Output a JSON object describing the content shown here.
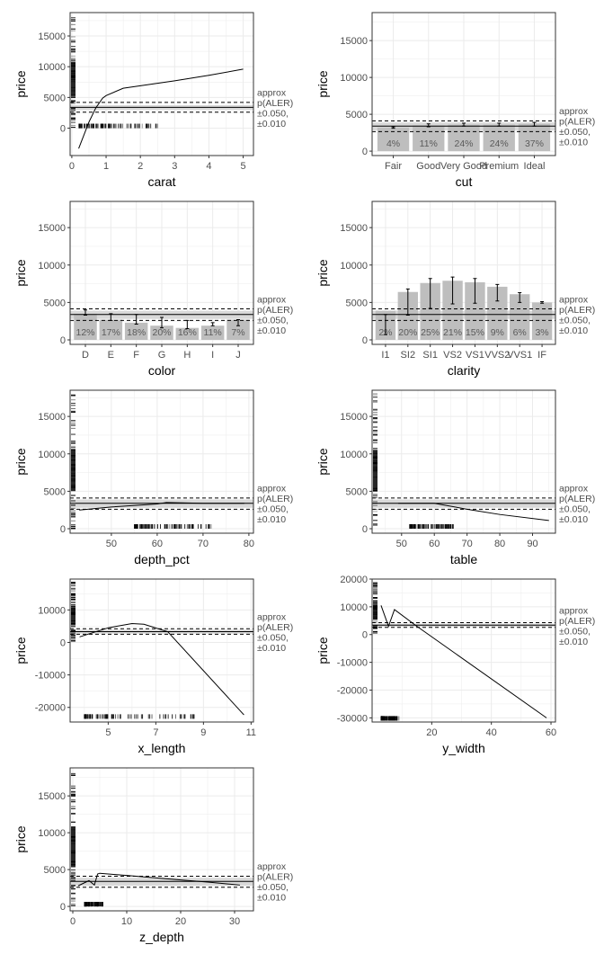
{
  "aler_label": [
    "approx",
    "p(ALER)",
    "±0.050,",
    "±0.010"
  ],
  "colors": {
    "bar": "#bebebe",
    "band": "#d9d9d9",
    "grid": "#ebebeb",
    "line": "#000000"
  },
  "chart_data": [
    {
      "type": "line",
      "xlabel": "carat",
      "ylabel": "price",
      "xlim": [
        -0.05,
        5.3
      ],
      "ylim": [
        -4450,
        18800
      ],
      "xticks": [
        0,
        1,
        2,
        3,
        4,
        5
      ],
      "yticks": [
        0,
        5000,
        10000,
        15000
      ],
      "x": [
        0.2,
        0.5,
        0.7,
        0.9,
        1.0,
        1.5,
        2,
        3,
        4,
        5
      ],
      "y": [
        -3300,
        1000,
        3300,
        4900,
        5300,
        6500,
        6900,
        7700,
        8600,
        9600
      ],
      "aler": {
        "median": 3400,
        "inner": [
          2950,
          3750
        ],
        "outer": [
          2600,
          4200
        ]
      },
      "rug_x": [
        0.2,
        2.6
      ],
      "rug_y_at": 0
    },
    {
      "type": "bar",
      "xlabel": "cut",
      "ylabel": "price",
      "ylim": [
        -600,
        18800
      ],
      "yticks": [
        0,
        5000,
        10000,
        15000
      ],
      "categories": [
        "Fair",
        "Good",
        "Very Good",
        "Premium",
        "Ideal"
      ],
      "values": [
        3200,
        3500,
        3600,
        3600,
        3700
      ],
      "err_low": [
        3100,
        3300,
        3400,
        3400,
        3400
      ],
      "err_high": [
        3300,
        3700,
        3800,
        3800,
        3900
      ],
      "percent_labels": [
        "4%",
        "11%",
        "24%",
        "24%",
        "37%"
      ],
      "aler": {
        "median": 3400,
        "inner": [
          2800,
          3900
        ],
        "outer": [
          2650,
          4100
        ]
      }
    },
    {
      "type": "bar",
      "xlabel": "color",
      "ylabel": "price",
      "ylim": [
        -600,
        18500
      ],
      "yticks": [
        0,
        5000,
        10000,
        15000
      ],
      "categories": [
        "D",
        "E",
        "F",
        "G",
        "H",
        "I",
        "J"
      ],
      "values": [
        3500,
        2700,
        2300,
        1900,
        1600,
        1900,
        2700
      ],
      "err_low": [
        3300,
        2600,
        2100,
        1600,
        1500,
        1900,
        1900
      ],
      "err_high": [
        4000,
        3500,
        3400,
        3000,
        2600,
        2300,
        2700
      ],
      "percent_labels": [
        "12%",
        "17%",
        "18%",
        "20%",
        "16%",
        "11%",
        "7%"
      ],
      "aler": {
        "median": 3400,
        "inner": [
          2800,
          3900
        ],
        "outer": [
          2600,
          4150
        ]
      }
    },
    {
      "type": "bar",
      "xlabel": "clarity",
      "ylabel": "price",
      "ylim": [
        -600,
        18500
      ],
      "yticks": [
        0,
        5000,
        10000,
        15000
      ],
      "categories": [
        "I1",
        "SI2",
        "SI1",
        "VS2",
        "VS1",
        "VVS2",
        "VVS1",
        "IF"
      ],
      "values": [
        3900,
        6400,
        7600,
        7900,
        7700,
        7100,
        6100,
        5000
      ],
      "err_low": [
        700,
        3300,
        4200,
        4800,
        4900,
        5200,
        5000,
        4900
      ],
      "err_high": [
        3400,
        6800,
        8200,
        8400,
        8200,
        7400,
        6300,
        5100
      ],
      "percent_labels": [
        "2%",
        "20%",
        "25%",
        "21%",
        "15%",
        "9%",
        "6%",
        "3%"
      ],
      "aler": {
        "median": 3400,
        "inner": [
          2800,
          3900
        ],
        "outer": [
          2600,
          4150
        ]
      }
    },
    {
      "type": "line",
      "xlabel": "depth_pct",
      "ylabel": "price",
      "xlim": [
        41,
        81
      ],
      "ylim": [
        -600,
        18500
      ],
      "xticks": [
        50,
        60,
        70,
        80
      ],
      "yticks": [
        0,
        5000,
        10000,
        15000
      ],
      "x": [
        43,
        50,
        60,
        62,
        70,
        79
      ],
      "y": [
        2500,
        2900,
        3300,
        3500,
        3400,
        3400
      ],
      "aler": {
        "median": 3400,
        "inner": [
          2800,
          3900
        ],
        "outer": [
          2600,
          4100
        ]
      },
      "rug_x": [
        55,
        72
      ],
      "rug_y_at": 0
    },
    {
      "type": "line",
      "xlabel": "table",
      "ylabel": "price",
      "xlim": [
        41,
        97
      ],
      "ylim": [
        -600,
        18500
      ],
      "xticks": [
        50,
        60,
        70,
        80,
        90
      ],
      "yticks": [
        0,
        5000,
        10000,
        15000
      ],
      "x": [
        49,
        60,
        70,
        80,
        95
      ],
      "y": [
        3400,
        3400,
        2600,
        1900,
        1100
      ],
      "aler": {
        "median": 3400,
        "inner": [
          2800,
          3900
        ],
        "outer": [
          2600,
          4100
        ]
      },
      "rug_x": [
        52.5,
        66
      ],
      "rug_y_at": 0
    },
    {
      "type": "line",
      "xlabel": "x_length",
      "ylabel": "price",
      "xlim": [
        3.4,
        11.1
      ],
      "ylim": [
        -24500,
        19500
      ],
      "xticks": [
        5,
        7,
        9,
        11
      ],
      "yticks": [
        -20000,
        -10000,
        0,
        10000
      ],
      "x": [
        3.8,
        5,
        6,
        6.5,
        7.5,
        10.7
      ],
      "y": [
        1700,
        4500,
        5800,
        5600,
        3300,
        -22300
      ],
      "aler": {
        "median": 3300,
        "inner": [
          2700,
          3900
        ],
        "outer": [
          2500,
          4200
        ]
      },
      "rug_x": [
        4,
        8.7
      ],
      "rug_y_at": -23500
    },
    {
      "type": "line",
      "xlabel": "y_width",
      "ylabel": "price",
      "xlim": [
        0,
        61.5
      ],
      "ylim": [
        -31500,
        20000
      ],
      "xticks": [
        20,
        40,
        60
      ],
      "yticks": [
        -30000,
        -20000,
        -10000,
        0,
        10000,
        20000
      ],
      "x": [
        3,
        5.5,
        7.5,
        15,
        58.5
      ],
      "y": [
        10500,
        3000,
        9000,
        3000,
        -30000
      ],
      "aler": {
        "median": 3400,
        "inner": [
          2800,
          3900
        ],
        "outer": [
          2600,
          4300
        ]
      },
      "rug_x": [
        3,
        9
      ],
      "rug_y_at": -31000
    },
    {
      "type": "line",
      "xlabel": "z_depth",
      "ylabel": "price",
      "xlim": [
        -0.5,
        33.5
      ],
      "ylim": [
        -600,
        18800
      ],
      "xticks": [
        0,
        10,
        20,
        30
      ],
      "yticks": [
        0,
        5000,
        10000,
        15000
      ],
      "x": [
        1,
        3,
        4,
        4.6,
        5,
        10,
        15,
        20,
        25,
        31
      ],
      "y": [
        2800,
        3500,
        2900,
        4400,
        4500,
        4200,
        3900,
        3600,
        3300,
        2900
      ],
      "aler": {
        "median": 3400,
        "inner": [
          2800,
          3900
        ],
        "outer": [
          2600,
          4100
        ]
      },
      "rug_x": [
        2.2,
        5.6
      ],
      "rug_y_at": 0
    }
  ]
}
